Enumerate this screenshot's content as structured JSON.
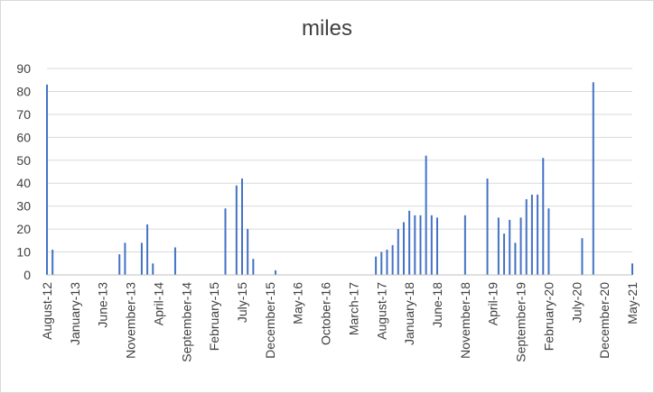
{
  "chart_data": {
    "type": "bar",
    "title": "miles",
    "xlabel": "",
    "ylabel": "",
    "ylim": [
      0,
      90
    ],
    "yticks": [
      0,
      10,
      20,
      30,
      40,
      50,
      60,
      70,
      80,
      90
    ],
    "grid": true,
    "legend": "none",
    "bar_color": "#4472c4",
    "x_tick_labels": [
      "August-12",
      "January-13",
      "June-13",
      "November-13",
      "April-14",
      "September-14",
      "February-15",
      "July-15",
      "December-15",
      "May-16",
      "October-16",
      "March-17",
      "August-17",
      "January-18",
      "June-18",
      "November-18",
      "April-19",
      "September-19",
      "February-20",
      "July-20",
      "December-20",
      "May-21"
    ],
    "categories": [
      "2012-08",
      "2012-09",
      "2013-09",
      "2013-10",
      "2014-01",
      "2014-02",
      "2014-03",
      "2014-07",
      "2015-04",
      "2015-06",
      "2015-07",
      "2015-08",
      "2015-09",
      "2016-01",
      "2017-07",
      "2017-08",
      "2017-09",
      "2017-10",
      "2017-11",
      "2017-12",
      "2018-01",
      "2018-02",
      "2018-03",
      "2018-04",
      "2018-05",
      "2018-06",
      "2018-07",
      "2018-11",
      "2019-03",
      "2019-05",
      "2019-06",
      "2019-07",
      "2019-08",
      "2019-09",
      "2019-10",
      "2019-11",
      "2019-12",
      "2020-01",
      "2020-02",
      "2020-08",
      "2020-10",
      "2021-05"
    ],
    "values": [
      83,
      11,
      9,
      14,
      14,
      22,
      5,
      12,
      29,
      39,
      42,
      20,
      7,
      2,
      8,
      10,
      11,
      13,
      20,
      23,
      28,
      26,
      26,
      52,
      26,
      25,
      0,
      26,
      42,
      25,
      18,
      24,
      14,
      25,
      33,
      35,
      35,
      51,
      29,
      16,
      84,
      5
    ]
  }
}
